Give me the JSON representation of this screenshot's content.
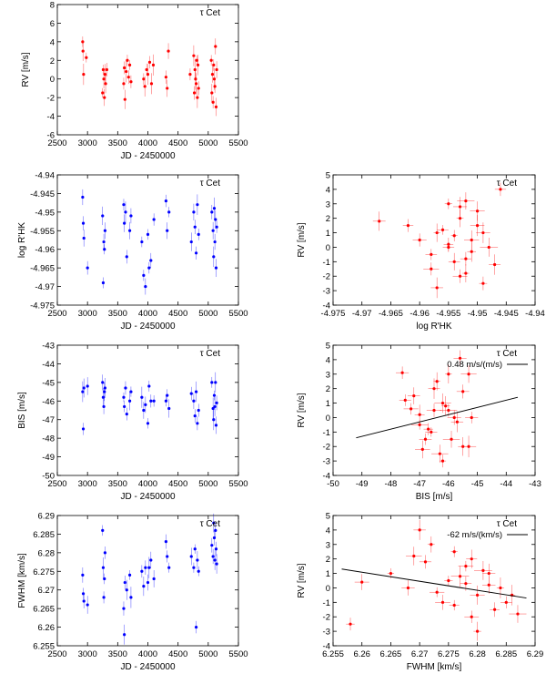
{
  "figure": {
    "star_label": "τ Cet",
    "colors": {
      "rv": "#ff0000",
      "activity": "#0000ff",
      "fit_line": "#000000"
    }
  },
  "chart_data": [
    {
      "id": "rv-time",
      "type": "scatter",
      "title": "τ Cet",
      "xlabel": "JD - 2450000",
      "ylabel": "RV [m/s]",
      "xlim": [
        2500,
        5500
      ],
      "ylim": [
        -6,
        8
      ],
      "xticks": [
        2500,
        3000,
        3500,
        4000,
        4500,
        5000,
        5500
      ],
      "yticks": [
        -6,
        -4,
        -2,
        0,
        2,
        4,
        6,
        8
      ],
      "color": "#ff0000",
      "x": [
        2920,
        2925,
        2935,
        2980,
        3250,
        3260,
        3270,
        3280,
        3290,
        3300,
        3320,
        3600,
        3610,
        3620,
        3640,
        3660,
        3680,
        3700,
        3720,
        3930,
        3950,
        3980,
        4000,
        4030,
        4060,
        4090,
        4300,
        4320,
        4340,
        4700,
        4760,
        4770,
        4780,
        4790,
        4800,
        4810,
        4820,
        4830,
        4840,
        5050,
        5060,
        5070,
        5080,
        5090,
        5100,
        5110,
        5120,
        5130,
        5140
      ],
      "y": [
        4.0,
        3.0,
        0.5,
        2.3,
        -1.5,
        1.0,
        0.0,
        -2.0,
        0.5,
        -0.5,
        1.0,
        -0.5,
        1.2,
        -2.2,
        0.8,
        2.0,
        0.2,
        1.5,
        -0.3,
        0.0,
        -0.8,
        1.0,
        0.5,
        1.8,
        -0.5,
        1.5,
        0.2,
        -1.0,
        3.0,
        0.5,
        2.5,
        -1.5,
        1.0,
        0.0,
        -0.5,
        2.0,
        -2.0,
        1.5,
        -1.0,
        2.0,
        -1.5,
        0.5,
        -2.5,
        1.5,
        0.0,
        -0.8,
        3.5,
        -3.0,
        1.0
      ]
    },
    {
      "id": "rhk-time",
      "type": "scatter",
      "title": "τ Cet",
      "xlabel": "JD - 2450000",
      "ylabel": "log R'HK",
      "xlim": [
        2500,
        5500
      ],
      "ylim": [
        -4.975,
        -4.94
      ],
      "xticks": [
        2500,
        3000,
        3500,
        4000,
        4500,
        5000,
        5500
      ],
      "yticks": [
        -4.975,
        -4.97,
        -4.965,
        -4.96,
        -4.955,
        -4.95,
        -4.945,
        -4.94
      ],
      "color": "#0000ff",
      "x": [
        2920,
        2930,
        2940,
        3000,
        3250,
        3260,
        3270,
        3280,
        3290,
        3600,
        3610,
        3630,
        3650,
        3700,
        3720,
        3900,
        3930,
        3960,
        4000,
        4020,
        4050,
        4100,
        4300,
        4320,
        4350,
        4720,
        4760,
        4780,
        4800,
        4820,
        4840,
        5060,
        5080,
        5090,
        5100,
        5110,
        5120,
        5130,
        5140
      ],
      "y": [
        -4.946,
        -4.953,
        -4.957,
        -4.965,
        -4.951,
        -4.969,
        -4.958,
        -4.96,
        -4.955,
        -4.948,
        -4.953,
        -4.95,
        -4.962,
        -4.955,
        -4.951,
        -4.958,
        -4.967,
        -4.97,
        -4.956,
        -4.965,
        -4.963,
        -4.952,
        -4.947,
        -4.955,
        -4.95,
        -4.958,
        -4.95,
        -4.954,
        -4.961,
        -4.948,
        -4.956,
        -4.95,
        -4.955,
        -4.962,
        -4.949,
        -4.958,
        -4.952,
        -4.965,
        -4.954
      ]
    },
    {
      "id": "rv-rhk",
      "type": "scatter",
      "title": "τ Cet",
      "xlabel": "log R'HK",
      "ylabel": "RV [m/s]",
      "xlim": [
        -4.975,
        -4.94
      ],
      "ylim": [
        -4,
        5
      ],
      "xticks": [
        -4.975,
        -4.97,
        -4.965,
        -4.96,
        -4.955,
        -4.95,
        -4.945,
        -4.94
      ],
      "yticks": [
        -4,
        -3,
        -2,
        -1,
        0,
        1,
        2,
        3,
        4,
        5
      ],
      "color": "#ff0000",
      "x": [
        -4.946,
        -4.967,
        -4.962,
        -4.96,
        -4.958,
        -4.957,
        -4.955,
        -4.954,
        -4.953,
        -4.952,
        -4.951,
        -4.95,
        -4.949,
        -4.948,
        -4.952,
        -4.955,
        -4.958,
        -4.956,
        -4.95,
        -4.953,
        -4.954,
        -4.949,
        -4.951,
        -4.947,
        -4.955,
        -4.953,
        -4.957,
        -4.952
      ],
      "y": [
        4.0,
        1.8,
        1.5,
        0.5,
        -0.5,
        1.0,
        0.0,
        -1.0,
        2.0,
        -1.8,
        0.5,
        1.5,
        -2.5,
        0.0,
        -0.8,
        3.0,
        -1.5,
        1.2,
        2.5,
        -2.0,
        0.8,
        1.0,
        -0.3,
        -1.2,
        0.2,
        2.8,
        -2.8,
        3.2
      ]
    },
    {
      "id": "bis-time",
      "type": "scatter",
      "title": "τ Cet",
      "xlabel": "JD - 2450000",
      "ylabel": "BIS [m/s]",
      "xlim": [
        2500,
        5500
      ],
      "ylim": [
        -50,
        -43
      ],
      "xticks": [
        2500,
        3000,
        3500,
        4000,
        4500,
        5000,
        5500
      ],
      "yticks": [
        -50,
        -49,
        -48,
        -47,
        -46,
        -45,
        -44,
        -43
      ],
      "color": "#0000ff",
      "x": [
        2920,
        2930,
        2940,
        3000,
        3250,
        3260,
        3270,
        3280,
        3290,
        3600,
        3610,
        3630,
        3650,
        3700,
        3720,
        3900,
        3930,
        3960,
        4000,
        4020,
        4050,
        4100,
        4300,
        4320,
        4350,
        4720,
        4760,
        4780,
        4800,
        4820,
        4840,
        5060,
        5080,
        5090,
        5100,
        5110,
        5120,
        5130,
        5140
      ],
      "y": [
        -45.5,
        -47.5,
        -45.3,
        -45.2,
        -45.0,
        -45.8,
        -46.3,
        -45.5,
        -45.3,
        -45.8,
        -46.3,
        -45.3,
        -46.7,
        -46.0,
        -45.5,
        -45.8,
        -46.5,
        -46.2,
        -47.2,
        -45.2,
        -46.0,
        -46.0,
        -46.0,
        -45.7,
        -46.4,
        -45.6,
        -46.0,
        -46.8,
        -45.5,
        -47.2,
        -46.5,
        -45.0,
        -46.4,
        -47.0,
        -45.7,
        -46.3,
        -45.0,
        -47.3,
        -46.1
      ]
    },
    {
      "id": "rv-bis",
      "type": "scatter",
      "title": "τ Cet",
      "xlabel": "BIS [m/s]",
      "ylabel": "RV [m/s]",
      "xlim": [
        -50,
        -43
      ],
      "ylim": [
        -4,
        5
      ],
      "xticks": [
        -50,
        -49,
        -48,
        -47,
        -46,
        -45,
        -44,
        -43
      ],
      "yticks": [
        -4,
        -3,
        -2,
        -1,
        0,
        1,
        2,
        3,
        4,
        5
      ],
      "color": "#ff0000",
      "legend": "0.48 m/s/(m/s)",
      "fit": {
        "x": [
          -49.2,
          -43.6
        ],
        "y": [
          -1.4,
          1.4
        ]
      },
      "x": [
        -45.6,
        -47.6,
        -45.3,
        -46.5,
        -47.0,
        -46.2,
        -45.8,
        -46.8,
        -46.5,
        -45.5,
        -46.0,
        -47.2,
        -46.3,
        -45.2,
        -46.7,
        -46.0,
        -45.9,
        -47.5,
        -46.4,
        -45.3,
        -46.1,
        -46.6,
        -45.7,
        -47.0,
        -46.2,
        -45.5,
        -46.9,
        -47.3
      ],
      "y": [
        4.1,
        3.1,
        3.0,
        0.5,
        -0.5,
        1.0,
        0.0,
        -1.5,
        2.0,
        -2.0,
        0.5,
        1.5,
        -2.5,
        0.0,
        -0.8,
        3.0,
        -1.5,
        1.2,
        2.5,
        -2.0,
        0.8,
        -1.0,
        -0.3,
        0.2,
        -3.0,
        1.8,
        -2.2,
        0.6
      ]
    },
    {
      "id": "fwhm-time",
      "type": "scatter",
      "title": "τ Cet",
      "xlabel": "JD - 2450000",
      "ylabel": "FWHM [km/s]",
      "xlim": [
        2500,
        5500
      ],
      "ylim": [
        6.255,
        6.29
      ],
      "xticks": [
        2500,
        3000,
        3500,
        4000,
        4500,
        5000,
        5500
      ],
      "yticks": [
        6.255,
        6.26,
        6.265,
        6.27,
        6.275,
        6.28,
        6.285,
        6.29
      ],
      "color": "#0000ff",
      "x": [
        2920,
        2930,
        2940,
        3000,
        3250,
        3260,
        3270,
        3280,
        3290,
        3600,
        3610,
        3620,
        3650,
        3700,
        3720,
        3900,
        3930,
        3960,
        4000,
        4020,
        4050,
        4100,
        4300,
        4320,
        4350,
        4720,
        4760,
        4780,
        4800,
        4820,
        4840,
        5060,
        5080,
        5090,
        5100,
        5110,
        5120,
        5130,
        5140
      ],
      "y": [
        6.274,
        6.269,
        6.267,
        6.266,
        6.286,
        6.276,
        6.268,
        6.273,
        6.28,
        6.265,
        6.258,
        6.272,
        6.27,
        6.274,
        6.268,
        6.275,
        6.271,
        6.276,
        6.272,
        6.276,
        6.278,
        6.273,
        6.283,
        6.279,
        6.276,
        6.279,
        6.276,
        6.281,
        6.26,
        6.278,
        6.275,
        6.282,
        6.279,
        6.288,
        6.284,
        6.278,
        6.286,
        6.281,
        6.277
      ]
    },
    {
      "id": "rv-fwhm",
      "type": "scatter",
      "title": "τ Cet",
      "xlabel": "FWHM [km/s]",
      "ylabel": "RV [m/s]",
      "xlim": [
        6.255,
        6.29
      ],
      "ylim": [
        -4,
        5
      ],
      "xticks": [
        6.255,
        6.26,
        6.265,
        6.27,
        6.275,
        6.28,
        6.285,
        6.29
      ],
      "yticks": [
        -4,
        -3,
        -2,
        -1,
        0,
        1,
        2,
        3,
        4,
        5
      ],
      "color": "#ff0000",
      "legend": "-62 m/s/(km/s)",
      "fit": {
        "x": [
          6.2565,
          6.2885
        ],
        "y": [
          1.3,
          -0.7
        ]
      },
      "x": [
        6.258,
        6.26,
        6.265,
        6.27,
        6.272,
        6.268,
        6.275,
        6.278,
        6.28,
        6.282,
        6.285,
        6.276,
        6.279,
        6.281,
        6.283,
        6.274,
        6.277,
        6.273,
        6.279,
        6.286,
        6.271,
        6.28,
        6.284,
        6.287,
        6.276,
        6.269,
        6.278,
        6.282
      ],
      "y": [
        -2.5,
        0.4,
        1.0,
        4.0,
        3.0,
        0.0,
        0.5,
        1.5,
        -0.5,
        0.2,
        -1.0,
        2.5,
        -2.0,
        1.2,
        -1.5,
        -1.0,
        0.8,
        -0.3,
        2.0,
        -0.5,
        1.8,
        -3.0,
        0.0,
        -1.8,
        -1.2,
        2.2,
        0.3,
        1.0
      ]
    }
  ]
}
